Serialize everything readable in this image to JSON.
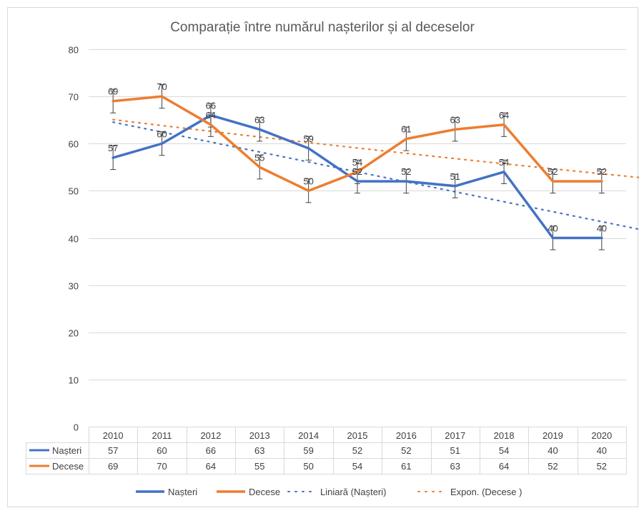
{
  "chart_data": {
    "type": "line",
    "title": "Comparație între numărul nașterilor și al deceselor",
    "categories": [
      "2010",
      "2011",
      "2012",
      "2013",
      "2014",
      "2015",
      "2016",
      "2017",
      "2018",
      "2019",
      "2020"
    ],
    "series": [
      {
        "name": "Nașteri",
        "color": "#4472C4",
        "values": [
          57,
          60,
          66,
          63,
          59,
          52,
          52,
          51,
          54,
          40,
          40
        ]
      },
      {
        "name": "Decese",
        "color": "#ED7D31",
        "values": [
          69,
          70,
          64,
          55,
          50,
          54,
          61,
          63,
          64,
          52,
          52
        ]
      }
    ],
    "trendlines": [
      {
        "name": "Liniară (Nașteri)",
        "series": 0,
        "kind": "linear",
        "color": "#4472C4"
      },
      {
        "name": "Expon. (Decese )",
        "series": 1,
        "kind": "exponential",
        "color": "#ED7D31"
      }
    ],
    "error_bar": 2.5,
    "ylim": [
      0,
      80
    ],
    "yticks": [
      "0",
      "10",
      "20",
      "30",
      "40",
      "50",
      "60",
      "70",
      "80"
    ],
    "grid": true,
    "legend_position": "bottom",
    "data_table": true
  }
}
